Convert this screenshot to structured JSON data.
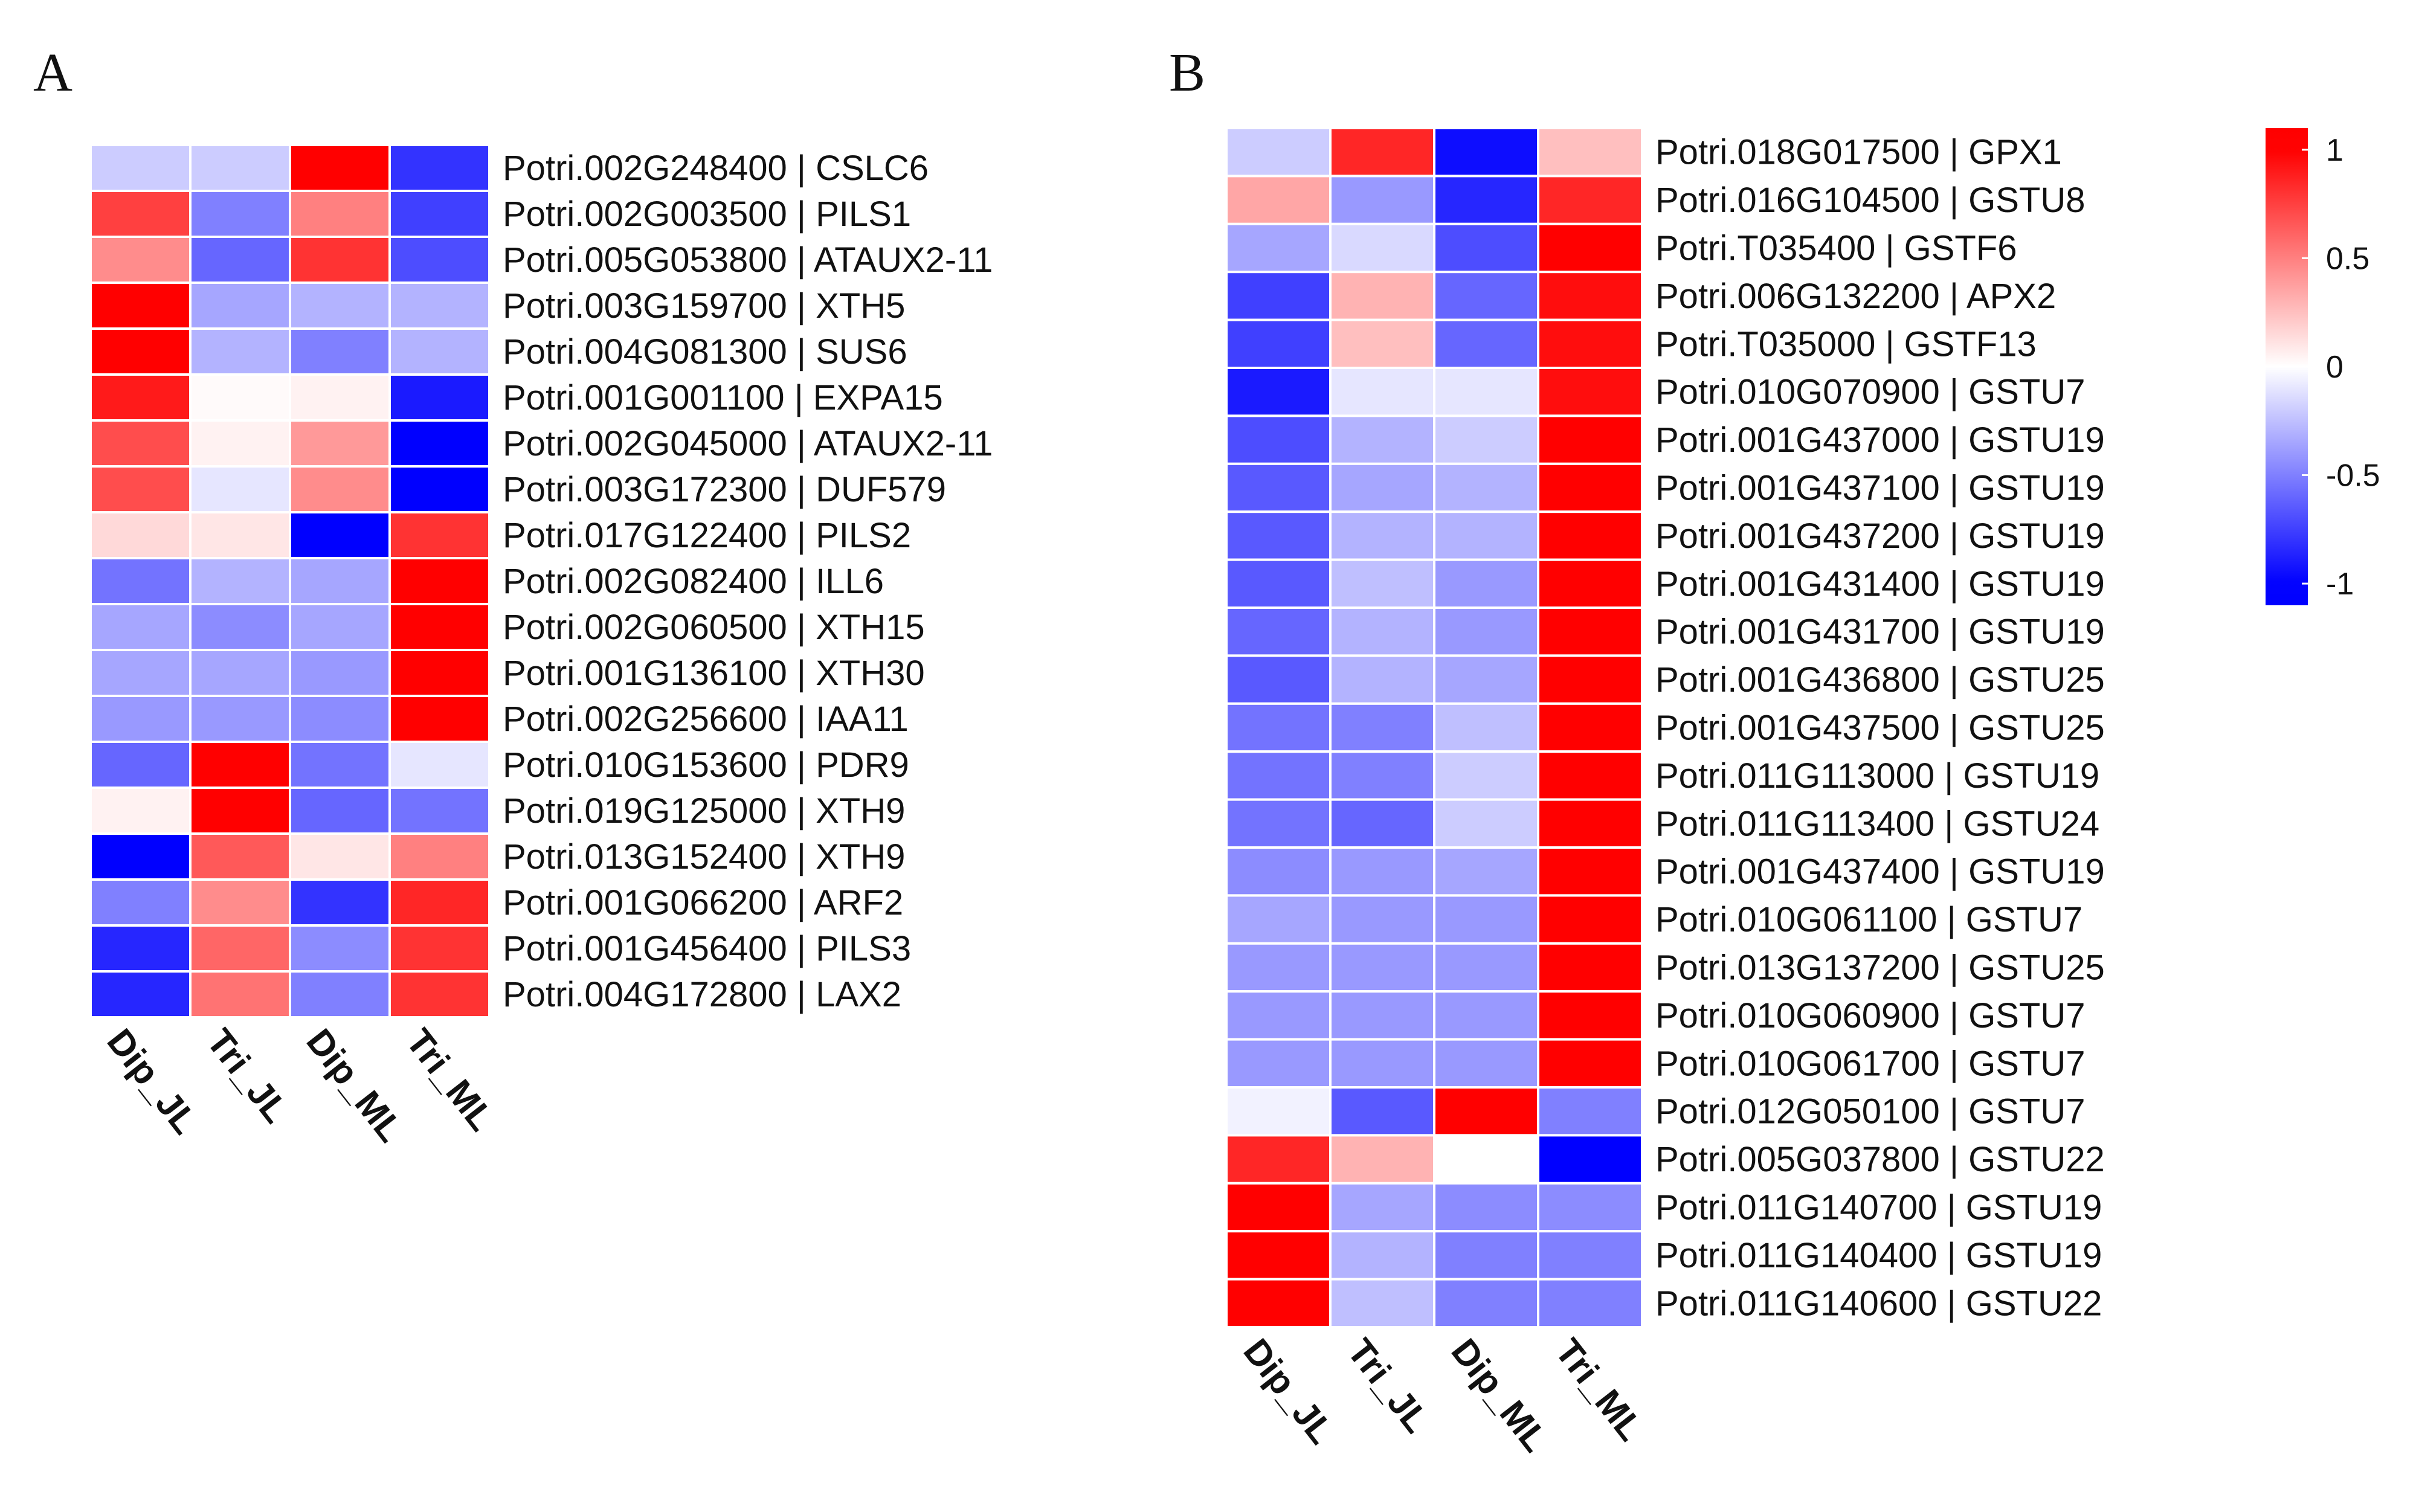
{
  "chart_data": [
    {
      "panel": "A",
      "type": "heatmap",
      "columns": [
        "Dip_JL",
        "Tri_JL",
        "Dip_ML",
        "Tri_ML"
      ],
      "rows": [
        {
          "label": "Potri.002G248400 | CSLC6",
          "values": [
            -0.2,
            -0.2,
            1.0,
            -0.8
          ]
        },
        {
          "label": "Potri.002G003500 | PILS1",
          "values": [
            0.75,
            -0.5,
            0.5,
            -0.75
          ]
        },
        {
          "label": "Potri.005G053800 | ATAUX2-11",
          "values": [
            0.45,
            -0.6,
            0.8,
            -0.7
          ]
        },
        {
          "label": "Potri.003G159700 | XTH5",
          "values": [
            1.0,
            -0.35,
            -0.3,
            -0.3
          ]
        },
        {
          "label": "Potri.004G081300 | SUS6",
          "values": [
            1.0,
            -0.3,
            -0.5,
            -0.3
          ]
        },
        {
          "label": "Potri.001G001100 | EXPA15",
          "values": [
            0.9,
            0.02,
            0.05,
            -0.9
          ]
        },
        {
          "label": "Potri.002G045000 | ATAUX2-11",
          "values": [
            0.7,
            0.05,
            0.4,
            -1.0
          ]
        },
        {
          "label": "Potri.003G172300 | DUF579",
          "values": [
            0.7,
            -0.1,
            0.45,
            -1.0
          ]
        },
        {
          "label": "Potri.017G122400 | PILS2",
          "values": [
            0.15,
            0.1,
            -1.0,
            0.8
          ]
        },
        {
          "label": "Potri.002G082400 | ILL6",
          "values": [
            -0.55,
            -0.3,
            -0.35,
            1.0
          ]
        },
        {
          "label": "Potri.002G060500 | XTH15",
          "values": [
            -0.35,
            -0.45,
            -0.35,
            1.0
          ]
        },
        {
          "label": "Potri.001G136100 | XTH30",
          "values": [
            -0.35,
            -0.35,
            -0.4,
            1.0
          ]
        },
        {
          "label": "Potri.002G256600 | IAA11",
          "values": [
            -0.4,
            -0.4,
            -0.45,
            1.0
          ]
        },
        {
          "label": "Potri.010G153600 | PDR9",
          "values": [
            -0.6,
            1.0,
            -0.55,
            -0.1
          ]
        },
        {
          "label": "Potri.019G125000 | XTH9",
          "values": [
            0.05,
            1.0,
            -0.6,
            -0.55
          ]
        },
        {
          "label": "Potri.013G152400 | XTH9",
          "values": [
            -1.0,
            0.65,
            0.1,
            0.5
          ]
        },
        {
          "label": "Potri.001G066200 | ARF2",
          "values": [
            -0.5,
            0.45,
            -0.8,
            0.85
          ]
        },
        {
          "label": "Potri.001G456400 | PILS3",
          "values": [
            -0.85,
            0.6,
            -0.45,
            0.8
          ]
        },
        {
          "label": "Potri.004G172800 | LAX2",
          "values": [
            -0.85,
            0.55,
            -0.5,
            0.8
          ]
        }
      ]
    },
    {
      "panel": "B",
      "type": "heatmap",
      "columns": [
        "Dip_JL",
        "Tri_JL",
        "Dip_ML",
        "Tri_ML"
      ],
      "rows": [
        {
          "label": "Potri.018G017500 | GPX1",
          "values": [
            -0.2,
            0.85,
            -0.95,
            0.25
          ]
        },
        {
          "label": "Potri.016G104500 | GSTU8",
          "values": [
            0.35,
            -0.4,
            -0.85,
            0.85
          ]
        },
        {
          "label": "Potri.T035400 | GSTF6",
          "values": [
            -0.35,
            -0.15,
            -0.7,
            1.0
          ]
        },
        {
          "label": "Potri.006G132200 | APX2",
          "values": [
            -0.75,
            0.3,
            -0.6,
            0.95
          ]
        },
        {
          "label": "Potri.T035000 | GSTF13",
          "values": [
            -0.75,
            0.25,
            -0.6,
            0.95
          ]
        },
        {
          "label": "Potri.010G070900 | GSTU7",
          "values": [
            -0.9,
            -0.1,
            -0.1,
            0.95
          ]
        },
        {
          "label": "Potri.001G437000 | GSTU19",
          "values": [
            -0.7,
            -0.3,
            -0.2,
            1.0
          ]
        },
        {
          "label": "Potri.001G437100 | GSTU19",
          "values": [
            -0.65,
            -0.35,
            -0.3,
            1.0
          ]
        },
        {
          "label": "Potri.001G437200 | GSTU19",
          "values": [
            -0.65,
            -0.3,
            -0.3,
            1.0
          ]
        },
        {
          "label": "Potri.001G431400 | GSTU19",
          "values": [
            -0.65,
            -0.25,
            -0.4,
            1.0
          ]
        },
        {
          "label": "Potri.001G431700 | GSTU19",
          "values": [
            -0.6,
            -0.3,
            -0.4,
            1.0
          ]
        },
        {
          "label": "Potri.001G436800 | GSTU25",
          "values": [
            -0.65,
            -0.3,
            -0.35,
            1.0
          ]
        },
        {
          "label": "Potri.001G437500 | GSTU25",
          "values": [
            -0.55,
            -0.5,
            -0.25,
            1.0
          ]
        },
        {
          "label": "Potri.011G113000 | GSTU19",
          "values": [
            -0.55,
            -0.5,
            -0.2,
            1.0
          ]
        },
        {
          "label": "Potri.011G113400 | GSTU24",
          "values": [
            -0.55,
            -0.6,
            -0.2,
            1.0
          ]
        },
        {
          "label": "Potri.001G437400 | GSTU19",
          "values": [
            -0.45,
            -0.4,
            -0.35,
            1.0
          ]
        },
        {
          "label": "Potri.010G061100 | GSTU7",
          "values": [
            -0.35,
            -0.4,
            -0.4,
            1.0
          ]
        },
        {
          "label": "Potri.013G137200 | GSTU25",
          "values": [
            -0.4,
            -0.4,
            -0.4,
            1.0
          ]
        },
        {
          "label": "Potri.010G060900 | GSTU7",
          "values": [
            -0.4,
            -0.4,
            -0.4,
            1.0
          ]
        },
        {
          "label": "Potri.010G061700 | GSTU7",
          "values": [
            -0.4,
            -0.4,
            -0.4,
            1.0
          ]
        },
        {
          "label": "Potri.012G050100 | GSTU7",
          "values": [
            -0.05,
            -0.65,
            1.0,
            -0.5
          ]
        },
        {
          "label": "Potri.005G037800 | GSTU22",
          "values": [
            0.85,
            0.3,
            0.0,
            -1.0
          ]
        },
        {
          "label": "Potri.011G140700 | GSTU19",
          "values": [
            1.0,
            -0.35,
            -0.45,
            -0.45
          ]
        },
        {
          "label": "Potri.011G140400 | GSTU19",
          "values": [
            1.0,
            -0.3,
            -0.5,
            -0.5
          ]
        },
        {
          "label": "Potri.011G140600 | GSTU22",
          "values": [
            1.0,
            -0.25,
            -0.5,
            -0.5
          ]
        }
      ]
    }
  ],
  "legend": {
    "range": [
      -1.1,
      1.1
    ],
    "ticks": [
      {
        "value": 1,
        "label": "1"
      },
      {
        "value": 0.5,
        "label": "0.5"
      },
      {
        "value": 0,
        "label": "0"
      },
      {
        "value": -0.5,
        "label": "-0.5"
      },
      {
        "value": -1,
        "label": "-1"
      }
    ]
  },
  "colors": {
    "high": "#ff0000",
    "mid": "#ffffff",
    "low": "#0000ff"
  }
}
